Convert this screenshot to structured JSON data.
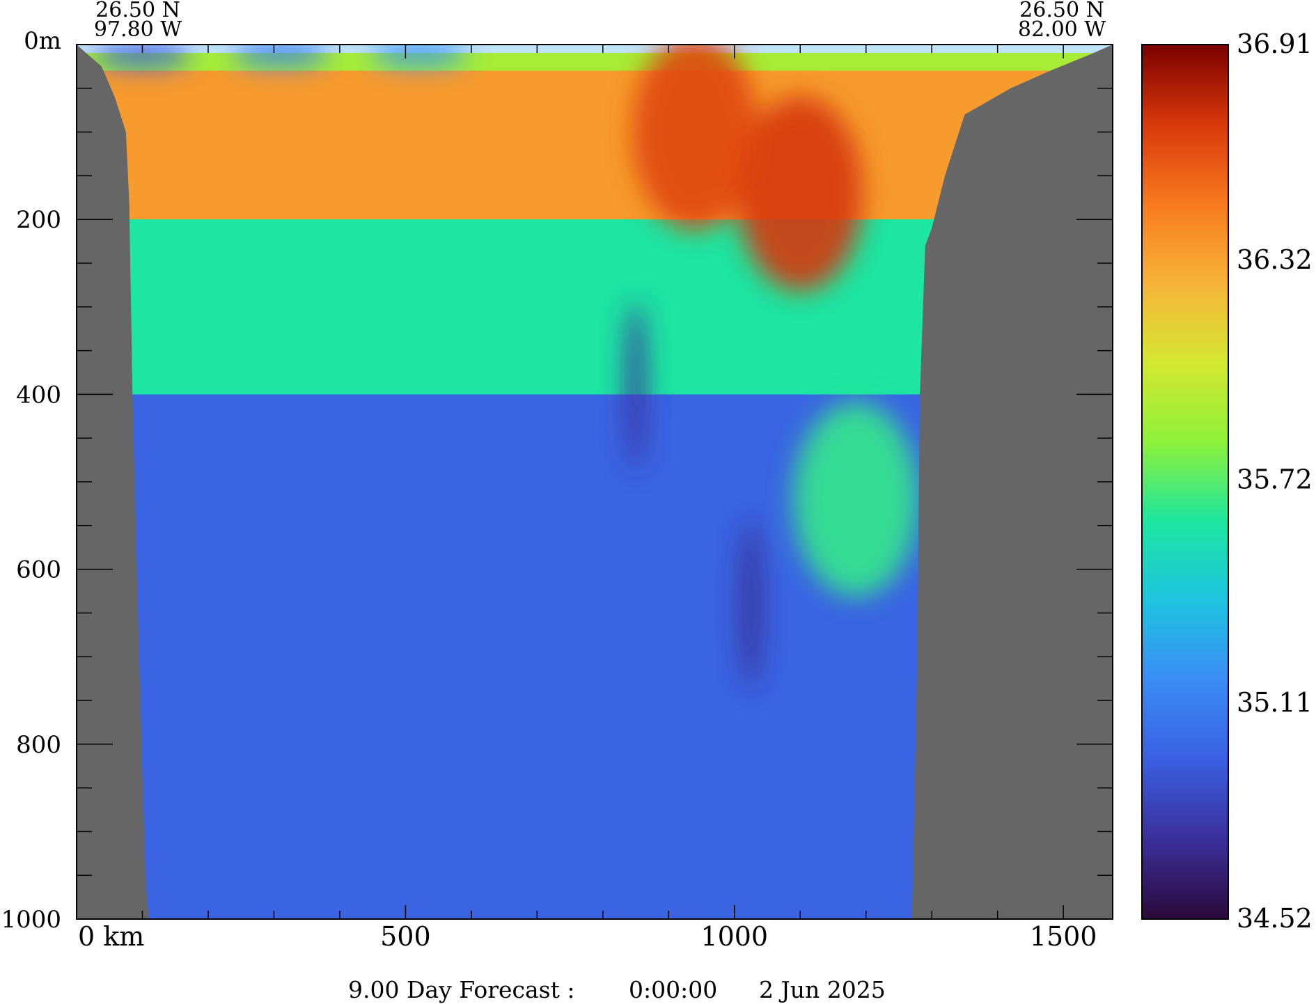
{
  "chart_data": {
    "type": "heatmap",
    "variable": "salinity section",
    "corner_labels": {
      "left": [
        "26.50 N",
        "97.80 W"
      ],
      "right": [
        "26.50 N",
        "82.00 W"
      ]
    },
    "x_axis": {
      "range": [
        0,
        1575
      ],
      "unit": "km",
      "ticks": [
        {
          "value": 0,
          "label": "0 km"
        },
        {
          "value": 500,
          "label": "500"
        },
        {
          "value": 1000,
          "label": "1000"
        },
        {
          "value": 1500,
          "label": "1500"
        }
      ],
      "minor_step": 100
    },
    "y_axis": {
      "range": [
        0,
        1000
      ],
      "unit": "m",
      "inverted": true,
      "ticks": [
        {
          "value": 0,
          "label": "0m"
        },
        {
          "value": 200,
          "label": "200"
        },
        {
          "value": 400,
          "label": "400"
        },
        {
          "value": 600,
          "label": "600"
        },
        {
          "value": 800,
          "label": "800"
        },
        {
          "value": 1000,
          "label": "1000"
        }
      ],
      "minor_step": 50
    },
    "colorbar": {
      "min": 34.52,
      "max": 36.91,
      "tick_labels": [
        "36.91",
        "36.32",
        "35.72",
        "35.11",
        "34.52"
      ],
      "tick_values": [
        36.91,
        36.32,
        35.72,
        35.11,
        34.52
      ],
      "colors": [
        "#2a0a3a",
        "#3b2f9a",
        "#3a5fe0",
        "#3b8cf5",
        "#1fc3e0",
        "#1de6a0",
        "#8ef03a",
        "#d4e832",
        "#f7b33a",
        "#f77a1e",
        "#d8380c",
        "#7a0000"
      ]
    },
    "bathymetry_left": [
      [
        0,
        0
      ],
      [
        18,
        12
      ],
      [
        38,
        25
      ],
      [
        58,
        60
      ],
      [
        75,
        100
      ],
      [
        80,
        180
      ],
      [
        85,
        400
      ],
      [
        95,
        700
      ],
      [
        105,
        960
      ],
      [
        110,
        1000
      ]
    ],
    "bathymetry_right": [
      [
        1270,
        1000
      ],
      [
        1278,
        700
      ],
      [
        1282,
        400
      ],
      [
        1290,
        230
      ],
      [
        1300,
        210
      ],
      [
        1320,
        150
      ],
      [
        1350,
        80
      ],
      [
        1420,
        50
      ],
      [
        1480,
        30
      ],
      [
        1545,
        10
      ],
      [
        1575,
        0
      ]
    ],
    "layers": [
      {
        "name": "surface_mixed",
        "depth_top": 0,
        "depth_bottom": 30,
        "value": 35.9
      },
      {
        "name": "subtropical_underwater",
        "depth_top": 30,
        "depth_bottom": 200,
        "value": 36.35
      },
      {
        "name": "transition",
        "depth_top": 200,
        "depth_bottom": 400,
        "value": 35.6
      },
      {
        "name": "intermediate",
        "depth_top": 400,
        "depth_bottom": 1000,
        "value": 34.98
      }
    ],
    "features": [
      {
        "name": "surface_fresh_patch_1",
        "x": 100,
        "depth": 12,
        "value": 34.95
      },
      {
        "name": "surface_fresh_patch_2",
        "x": 310,
        "depth": 10,
        "value": 35.1
      },
      {
        "name": "surface_fresh_patch_3",
        "x": 520,
        "depth": 10,
        "value": 35.2
      },
      {
        "name": "eddy_high_salinity",
        "x": 1100,
        "depth": 170,
        "value": 36.7
      },
      {
        "name": "eddy_high_salinity_2",
        "x": 940,
        "depth": 100,
        "value": 36.65
      },
      {
        "name": "low_salinity_filament_1",
        "x": 850,
        "depth": 390,
        "value": 34.75
      },
      {
        "name": "low_salinity_filament_2",
        "x": 1025,
        "depth": 640,
        "value": 34.7
      },
      {
        "name": "green_tongue",
        "x": 1185,
        "depth": 520,
        "value": 35.65
      }
    ]
  },
  "footer": {
    "forecast": "9.00 Day Forecast :",
    "time": "0:00:00",
    "date": "2 Jun 2025"
  }
}
